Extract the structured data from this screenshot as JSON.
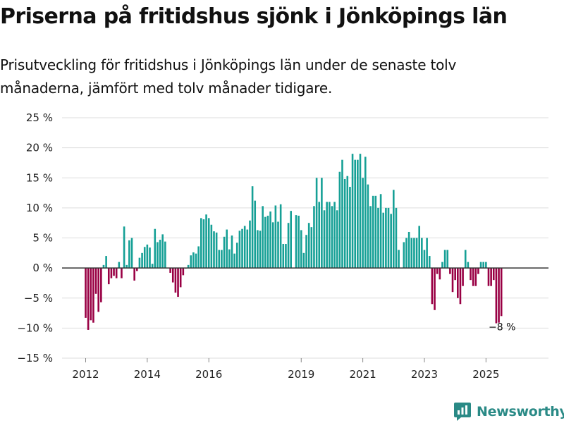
{
  "title": "Priserna på fritidshus sjönk i Jönköpings län",
  "subtitle": "Prisutveckling för fritidshus i Jönköpings län under de senaste tolv månaderna, jämfört med tolv månader tidigare.",
  "brand": {
    "name": "Newsworthy"
  },
  "colors": {
    "positive": "#16a096",
    "negative": "#990044",
    "grid": "#dddddd",
    "zero_line": "#333333",
    "brand": "#2a8a86"
  },
  "chart_data": {
    "type": "bar",
    "title": "Priserna på fritidshus sjönk i Jönköpings län",
    "xlabel": "",
    "ylabel": "",
    "ylim": [
      -15,
      25
    ],
    "yticks": [
      25,
      20,
      15,
      10,
      5,
      0,
      -5,
      -10,
      -15
    ],
    "ytick_labels": [
      "25 %",
      "20 %",
      "15 %",
      "10 %",
      "5 %",
      "0 %",
      "−5 %",
      "−10 %",
      "−15 %"
    ],
    "xticks": [
      {
        "label": "2012",
        "index": 0
      },
      {
        "label": "2014",
        "index": 24
      },
      {
        "label": "2016",
        "index": 48
      },
      {
        "label": "2019",
        "index": 84
      },
      {
        "label": "2021",
        "index": 108
      },
      {
        "label": "2023",
        "index": 132
      },
      {
        "label": "2025",
        "index": 156
      }
    ],
    "start": "2012-01",
    "end": "2025-09",
    "values": [
      -8.3,
      -10.3,
      -8.7,
      -9.1,
      -4.3,
      -7.3,
      -5.7,
      0.5,
      2,
      -2.7,
      -1.7,
      -1.3,
      -1.7,
      1,
      -1.7,
      6.9,
      0.5,
      4.6,
      5,
      -2.1,
      -0.5,
      1.7,
      2.5,
      3.5,
      3.9,
      3.4,
      0.7,
      6.5,
      4.3,
      4.7,
      5.6,
      4.4,
      0,
      -0.8,
      -2.4,
      -4.1,
      -4.8,
      -3.2,
      -1.2,
      -0.1,
      0.5,
      2.1,
      2.6,
      2.4,
      3.6,
      8.3,
      8.1,
      8.9,
      8.3,
      7.2,
      6.1,
      5.9,
      3,
      3,
      5.2,
      6.4,
      3.1,
      5.4,
      2.4,
      4.2,
      6.2,
      6.5,
      7,
      6.4,
      7.9,
      13.6,
      11.2,
      6.3,
      6.2,
      10.3,
      8.5,
      8.7,
      9.4,
      7.6,
      10.4,
      7.7,
      10.6,
      4,
      4,
      7.5,
      9.5,
      0,
      8.8,
      8.7,
      6.3,
      2.5,
      5.5,
      7.5,
      6.8,
      10.3,
      15,
      11,
      15,
      9.6,
      11,
      11,
      10.3,
      11,
      9.6,
      16,
      18,
      14.8,
      15.3,
      13.5,
      19,
      18,
      18,
      19,
      15,
      18.5,
      13.9,
      10.3,
      12,
      12,
      10,
      12.3,
      9.2,
      10,
      10,
      9,
      13,
      10,
      3,
      0,
      4.3,
      5,
      6,
      5,
      5,
      5,
      7,
      5,
      3,
      5,
      2,
      -6,
      -7,
      -1,
      -1.9,
      1,
      3,
      3,
      -1,
      -4,
      -2,
      -5,
      -6,
      -3,
      3,
      1,
      -2,
      -3,
      -3,
      -1,
      1,
      1,
      1,
      -3,
      -3,
      -2,
      -9.2,
      -9.1,
      -8
    ],
    "end_label": "−8 %"
  }
}
